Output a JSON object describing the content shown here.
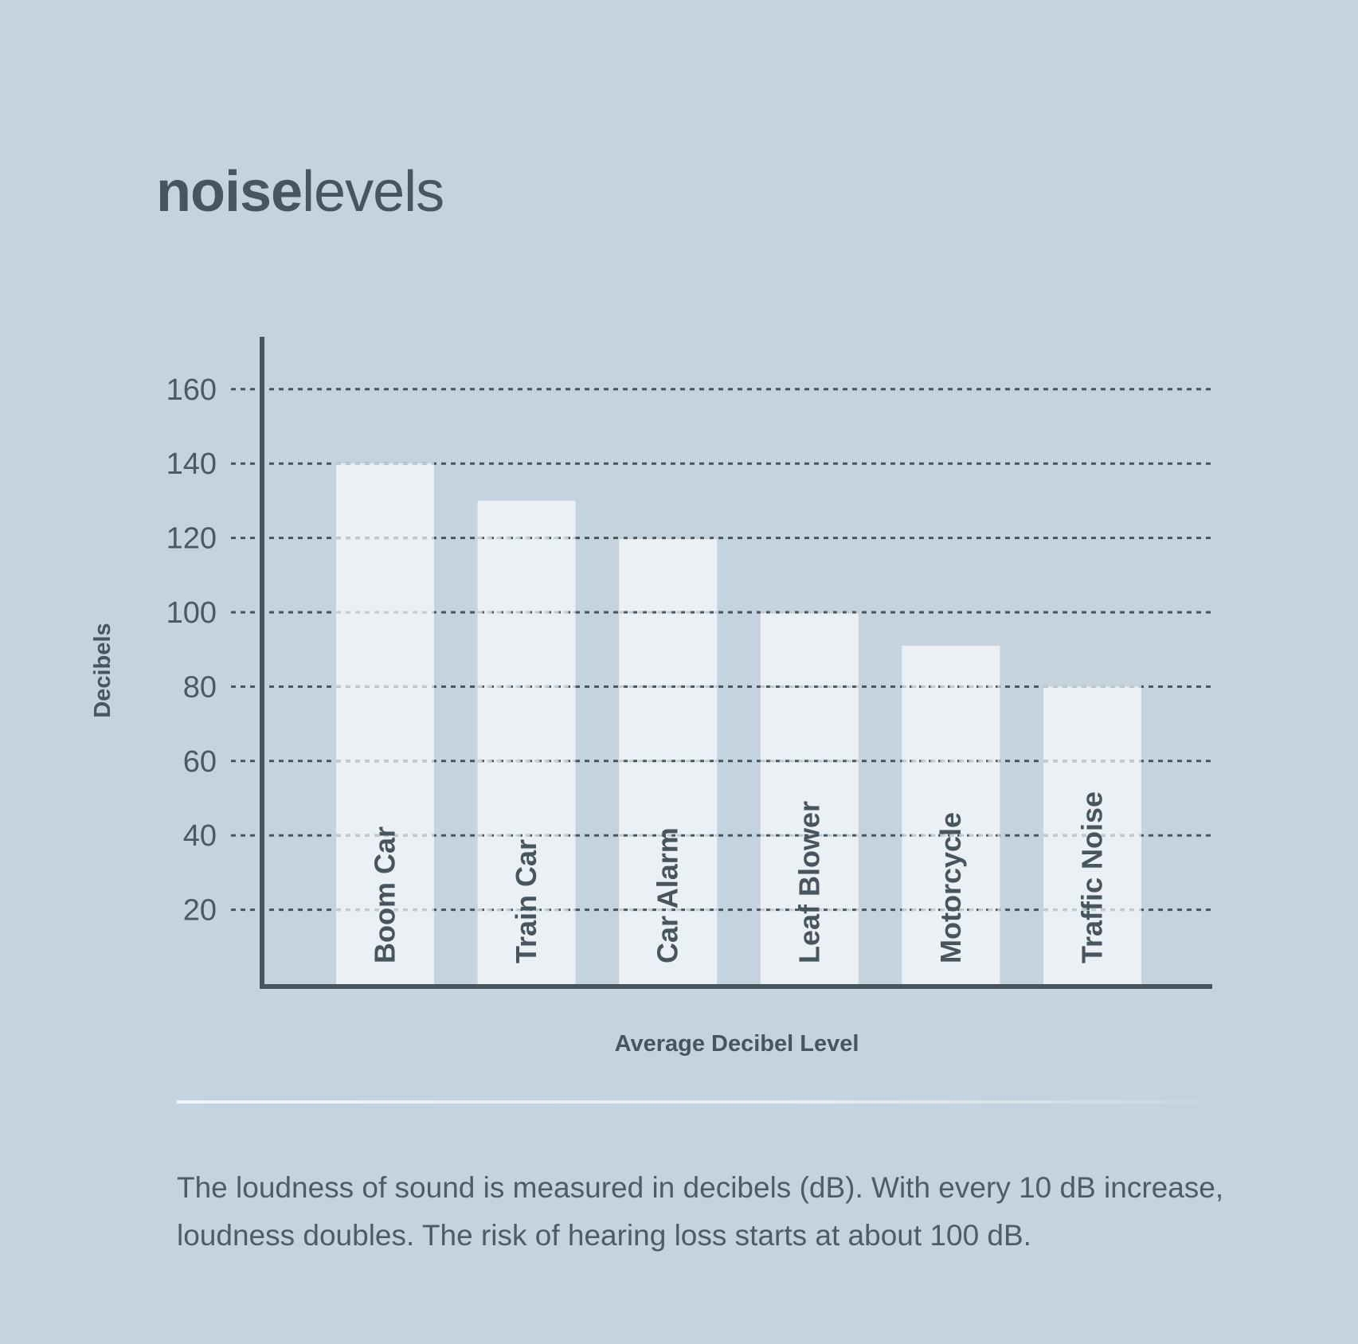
{
  "title": {
    "bold": "noise",
    "light": "levels"
  },
  "description": "The loudness of sound is measured in decibels (dB). With every 10 dB increase, loudness doubles. The risk of hearing loss starts at about 100 dB.",
  "colors": {
    "background": "#c4d3de",
    "bar": "#eaf0f4",
    "axis": "#46555e",
    "text": "#4a5962",
    "grid": "#46555e"
  },
  "chart_data": {
    "type": "bar",
    "title": "noiselevels",
    "xlabel": "Average Decibel Level",
    "ylabel": "Decibels",
    "categories": [
      "Boom Car",
      "Train Car",
      "Car Alarm",
      "Leaf Blower",
      "Motorcycle",
      "Traffic Noise"
    ],
    "values": [
      140,
      130,
      120,
      100,
      91,
      80
    ],
    "yticks": [
      20,
      40,
      60,
      80,
      100,
      120,
      140,
      160
    ],
    "ylim": [
      0,
      175
    ],
    "grid": true,
    "category_labels_inside_bars": true
  }
}
